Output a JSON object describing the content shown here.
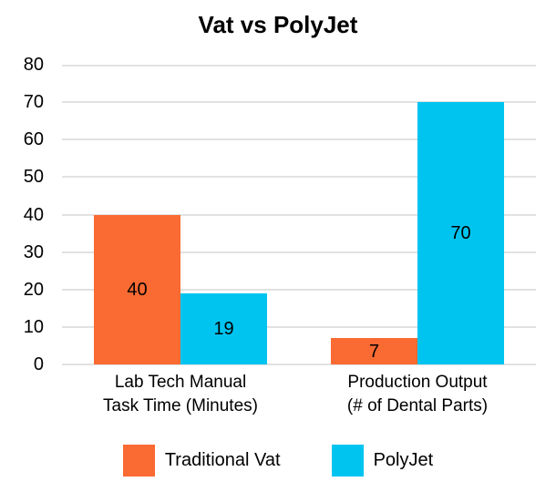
{
  "title": "Vat vs PolyJet",
  "colors": {
    "traditional_vat": "#FA6A33",
    "polyjet": "#00C4F0",
    "gridline": "#E2E2E2",
    "text": "#000000",
    "background": "#FFFFFF"
  },
  "legend": {
    "items": [
      {
        "label": "Traditional Vat",
        "color": "#FA6A33"
      },
      {
        "label": "PolyJet",
        "color": "#00C4F0"
      }
    ]
  },
  "chart_data": {
    "type": "bar",
    "title": "Vat vs PolyJet",
    "categories": [
      "Lab Tech Manual Task Time (Minutes)",
      "Production Output (# of Dental Parts)"
    ],
    "category_lines": [
      [
        "Lab Tech Manual",
        "Task Time (Minutes)"
      ],
      [
        "Production Output",
        "(# of Dental Parts)"
      ]
    ],
    "series": [
      {
        "name": "Traditional Vat",
        "color": "#FA6A33",
        "values": [
          40,
          7
        ]
      },
      {
        "name": "PolyJet",
        "color": "#00C4F0",
        "values": [
          19,
          70
        ]
      }
    ],
    "yticks": [
      0,
      10,
      20,
      30,
      40,
      50,
      60,
      70,
      80
    ],
    "ylim": [
      0,
      80
    ],
    "xlabel": "",
    "ylabel": "",
    "grid": true,
    "legend_position": "bottom",
    "data_labels": "inside-center"
  }
}
